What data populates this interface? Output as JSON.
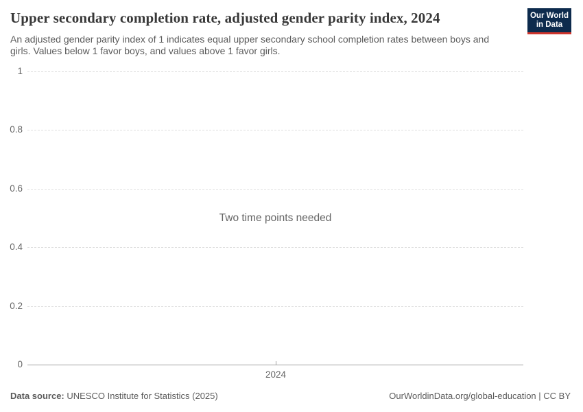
{
  "header": {
    "title": "Upper secondary completion rate, adjusted gender parity index, 2024",
    "subtitle": "An adjusted gender parity index of 1 indicates equal upper secondary school completion rates between boys and girls. Values below 1 favor boys, and values above 1 favor girls.",
    "logo": {
      "line1": "Our World",
      "line2": "in Data",
      "bg_color": "#0d2b4d",
      "bar_color": "#cf352c",
      "text_color": "#ffffff"
    }
  },
  "chart": {
    "empty_message": "Two time points needed",
    "y_tick_labels": [
      "1",
      "0.8",
      "0.6",
      "0.4",
      "0.2",
      "0"
    ],
    "x_tick_label": "2024",
    "gridline_color": "#dedede",
    "axis_color": "#a1a1a1",
    "tick_label_color": "#666666"
  },
  "footer": {
    "source_label": "Data source:",
    "source_value": " UNESCO Institute for Statistics (2025)",
    "credit": "OurWorldinData.org/global-education | CC BY"
  },
  "chart_data": {
    "type": "line",
    "title": "Upper secondary completion rate, adjusted gender parity index, 2024",
    "subtitle": "An adjusted gender parity index of 1 indicates equal upper secondary school completion rates between boys and girls. Values below 1 favor boys, and values above 1 favor girls.",
    "series": [],
    "annotations": [
      "Two time points needed"
    ],
    "x": [
      2024
    ],
    "xticks": [
      2024
    ],
    "yticks": [
      0,
      0.2,
      0.4,
      0.6,
      0.8,
      1
    ],
    "ylim": [
      0,
      1
    ],
    "xlabel": "",
    "ylabel": "",
    "grid": "horizontal-dashed",
    "legend": "none",
    "note": "Chart body is empty; placeholder message shown because two time points are needed to plot this indicator."
  }
}
